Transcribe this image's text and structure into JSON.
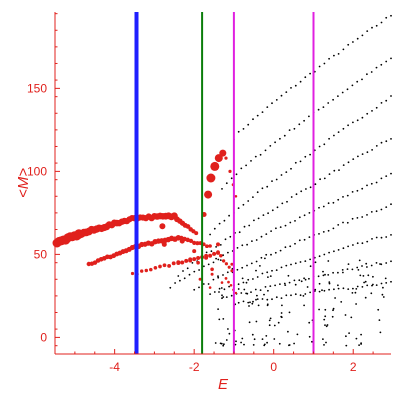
{
  "chart_data": {
    "type": "scatter",
    "xlabel": "E",
    "ylabel": "<M>",
    "xlim": [
      -5.5,
      2.95
    ],
    "ylim": [
      -10,
      196
    ],
    "x_ticks": [
      -4,
      -2,
      0,
      2
    ],
    "x_tick_labels": [
      "-4",
      "-2",
      "0",
      "2"
    ],
    "y_ticks": [
      0,
      50,
      100,
      150
    ],
    "y_tick_labels": [
      "0",
      "50",
      "100",
      "150"
    ],
    "grid": false,
    "legend": "none",
    "colors": {
      "axis": "#e0201c",
      "red_points": "#e0201c",
      "black_points": "#000000",
      "line_blue": "#1f1fff",
      "line_green": "#0a7d0a",
      "line_magenta": "#e020e0"
    },
    "vertical_lines": [
      {
        "x": -3.45,
        "color": "#1f1fff",
        "width": 4
      },
      {
        "x": -1.8,
        "color": "#0a7d0a",
        "width": 2
      },
      {
        "x": -1.0,
        "color": "#e020e0",
        "width": 2
      },
      {
        "x": 1.0,
        "color": "#e020e0",
        "width": 2
      }
    ],
    "series": [
      {
        "kind": "red-band",
        "color": "#e0201c",
        "segments": [
          {
            "x0": -5.45,
            "x1": -4.9,
            "y0": 57,
            "y1": 62,
            "size0": 4.5,
            "size1": 4.5,
            "n": 10
          },
          {
            "x0": -4.9,
            "x1": -3.5,
            "y0": 62,
            "y1": 72,
            "size0": 4.0,
            "size1": 3.0,
            "n": 22
          },
          {
            "x0": -3.5,
            "x1": -2.5,
            "y0": 72,
            "y1": 73,
            "size0": 3.0,
            "size1": 3.5,
            "n": 14
          },
          {
            "x0": -2.5,
            "x1": -1.95,
            "y0": 73,
            "y1": 63,
            "size0": 3.0,
            "size1": 2.0,
            "n": 8
          },
          {
            "x0": -4.65,
            "x1": -3.4,
            "y0": 44,
            "y1": 55,
            "size0": 2.2,
            "size1": 2.6,
            "n": 16
          },
          {
            "x0": -3.4,
            "x1": -2.4,
            "y0": 55,
            "y1": 60,
            "size0": 2.6,
            "size1": 2.8,
            "n": 12
          },
          {
            "x0": -2.4,
            "x1": -1.6,
            "y0": 60,
            "y1": 55,
            "size0": 2.4,
            "size1": 1.8,
            "n": 10
          },
          {
            "x0": -3.55,
            "x1": -2.4,
            "y0": 38,
            "y1": 45,
            "size0": 1.6,
            "size1": 2.0,
            "n": 10
          },
          {
            "x0": -2.4,
            "x1": -1.4,
            "y0": 45,
            "y1": 51,
            "size0": 2.0,
            "size1": 2.0,
            "n": 10
          },
          {
            "x0": -1.4,
            "x1": -1.05,
            "y0": 51,
            "y1": 40,
            "size0": 1.8,
            "size1": 1.5,
            "n": 5
          },
          {
            "x0": -1.2,
            "x1": -0.95,
            "y0": 36,
            "y1": 27,
            "size0": 1.4,
            "size1": 1.2,
            "n": 4
          }
        ],
        "arc": {
          "points": [
            [
              -1.75,
              74
            ],
            [
              -1.65,
              86
            ],
            [
              -1.58,
              96
            ],
            [
              -1.48,
              103
            ],
            [
              -1.38,
              108
            ],
            [
              -1.28,
              111
            ],
            [
              -1.2,
              108
            ],
            [
              -1.1,
              100
            ],
            [
              -1.02,
              92
            ],
            [
              -0.95,
              85
            ]
          ],
          "sizes": [
            2.5,
            4,
            4.5,
            4.5,
            4,
            3.5,
            1.6,
            1.6,
            1.4,
            1.3
          ]
        },
        "scatter": [
          [
            -2.8,
            67,
            3
          ],
          [
            -2.75,
            56,
            2.5
          ],
          [
            -2.1,
            47,
            2
          ],
          [
            -2.0,
            52,
            2
          ],
          [
            -1.9,
            45,
            1.8
          ],
          [
            -1.7,
            48,
            2
          ],
          [
            -1.55,
            41,
            1.8
          ],
          [
            -1.85,
            35,
            1.5
          ],
          [
            -1.55,
            38,
            1.5
          ],
          [
            -1.6,
            30,
            1.3
          ],
          [
            -1.3,
            33,
            1.3
          ],
          [
            -2.3,
            58,
            2.5
          ],
          [
            -1.4,
            56,
            2
          ],
          [
            -1.05,
            44,
            1.5
          ]
        ]
      },
      {
        "kind": "black-curves",
        "color": "#000000",
        "curves": [
          {
            "x0": -1.0,
            "y0": 120,
            "x1": 2.95,
            "y1": 194
          },
          {
            "x0": -1.3,
            "y0": 90,
            "x1": 2.95,
            "y1": 168
          },
          {
            "x0": -1.6,
            "y0": 62,
            "x1": 2.95,
            "y1": 145
          },
          {
            "x0": -2.4,
            "y0": 37,
            "x1": 2.95,
            "y1": 120
          },
          {
            "x0": -2.6,
            "y0": 30,
            "x1": 2.95,
            "y1": 98
          },
          {
            "x0": -2.0,
            "y0": 28,
            "x1": 2.95,
            "y1": 80
          },
          {
            "x0": -1.6,
            "y0": 26,
            "x1": 2.95,
            "y1": 62
          },
          {
            "x0": -1.3,
            "y0": 23,
            "x1": 2.95,
            "y1": 46
          },
          {
            "x0": -1.0,
            "y0": 20,
            "x1": 2.95,
            "y1": 33
          }
        ],
        "spacing": 0.12,
        "cluster": {
          "x0": -1.5,
          "x1": 2.9,
          "y0": -5,
          "y1": 48,
          "n": 150
        }
      }
    ]
  }
}
